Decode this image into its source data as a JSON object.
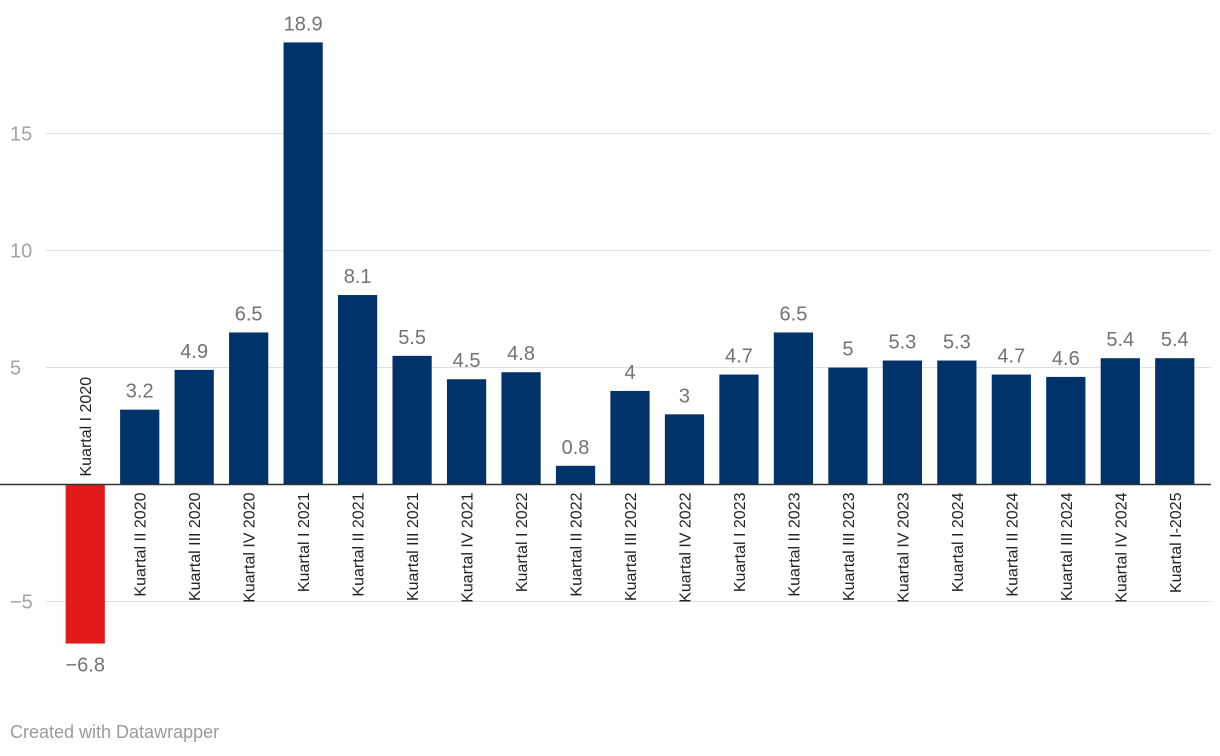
{
  "chart_data": {
    "type": "bar",
    "title": "",
    "xlabel": "",
    "ylabel": "",
    "ylim": [
      -6.8,
      18.9
    ],
    "yticks": [
      15,
      10,
      5,
      -5
    ],
    "ytick_labels": [
      "15",
      "10",
      "5",
      "−5"
    ],
    "grid": true,
    "colors": {
      "positive": "#003369",
      "negative": "#e11a1a"
    },
    "categories": [
      "Kuartal I 2020",
      "Kuartal II 2020",
      "Kuartal III 2020",
      "Kuartal IV 2020",
      "Kuartal I 2021",
      "Kuartal II 2021",
      "Kuartal III 2021",
      "Kuartal IV 2021",
      "Kuartal I 2022",
      "Kuartal II 2022",
      "Kuartal III 2022",
      "Kuartal IV 2022",
      "Kuartal I 2023",
      "Kuartal II 2023",
      "Kuartal III 2023",
      "Kuartal IV 2023",
      "Kuartal I 2024",
      "Kuartal II 2024",
      "Kuartal III 2024",
      "Kuartal IV 2024",
      "Kuartal I-2025"
    ],
    "values": [
      -6.8,
      3.2,
      4.9,
      6.5,
      18.9,
      8.1,
      5.5,
      4.5,
      4.8,
      0.8,
      4,
      3,
      4.7,
      6.5,
      5,
      5.3,
      5.3,
      4.7,
      4.6,
      5.4,
      5.4
    ],
    "value_labels": [
      "−6.8",
      "3.2",
      "4.9",
      "6.5",
      "18.9",
      "8.1",
      "5.5",
      "4.5",
      "4.8",
      "0.8",
      "4",
      "3",
      "4.7",
      "6.5",
      "5",
      "5.3",
      "5.3",
      "4.7",
      "4.6",
      "5.4",
      "5.4"
    ]
  },
  "footer": {
    "credit": "Created with Datawrapper"
  }
}
